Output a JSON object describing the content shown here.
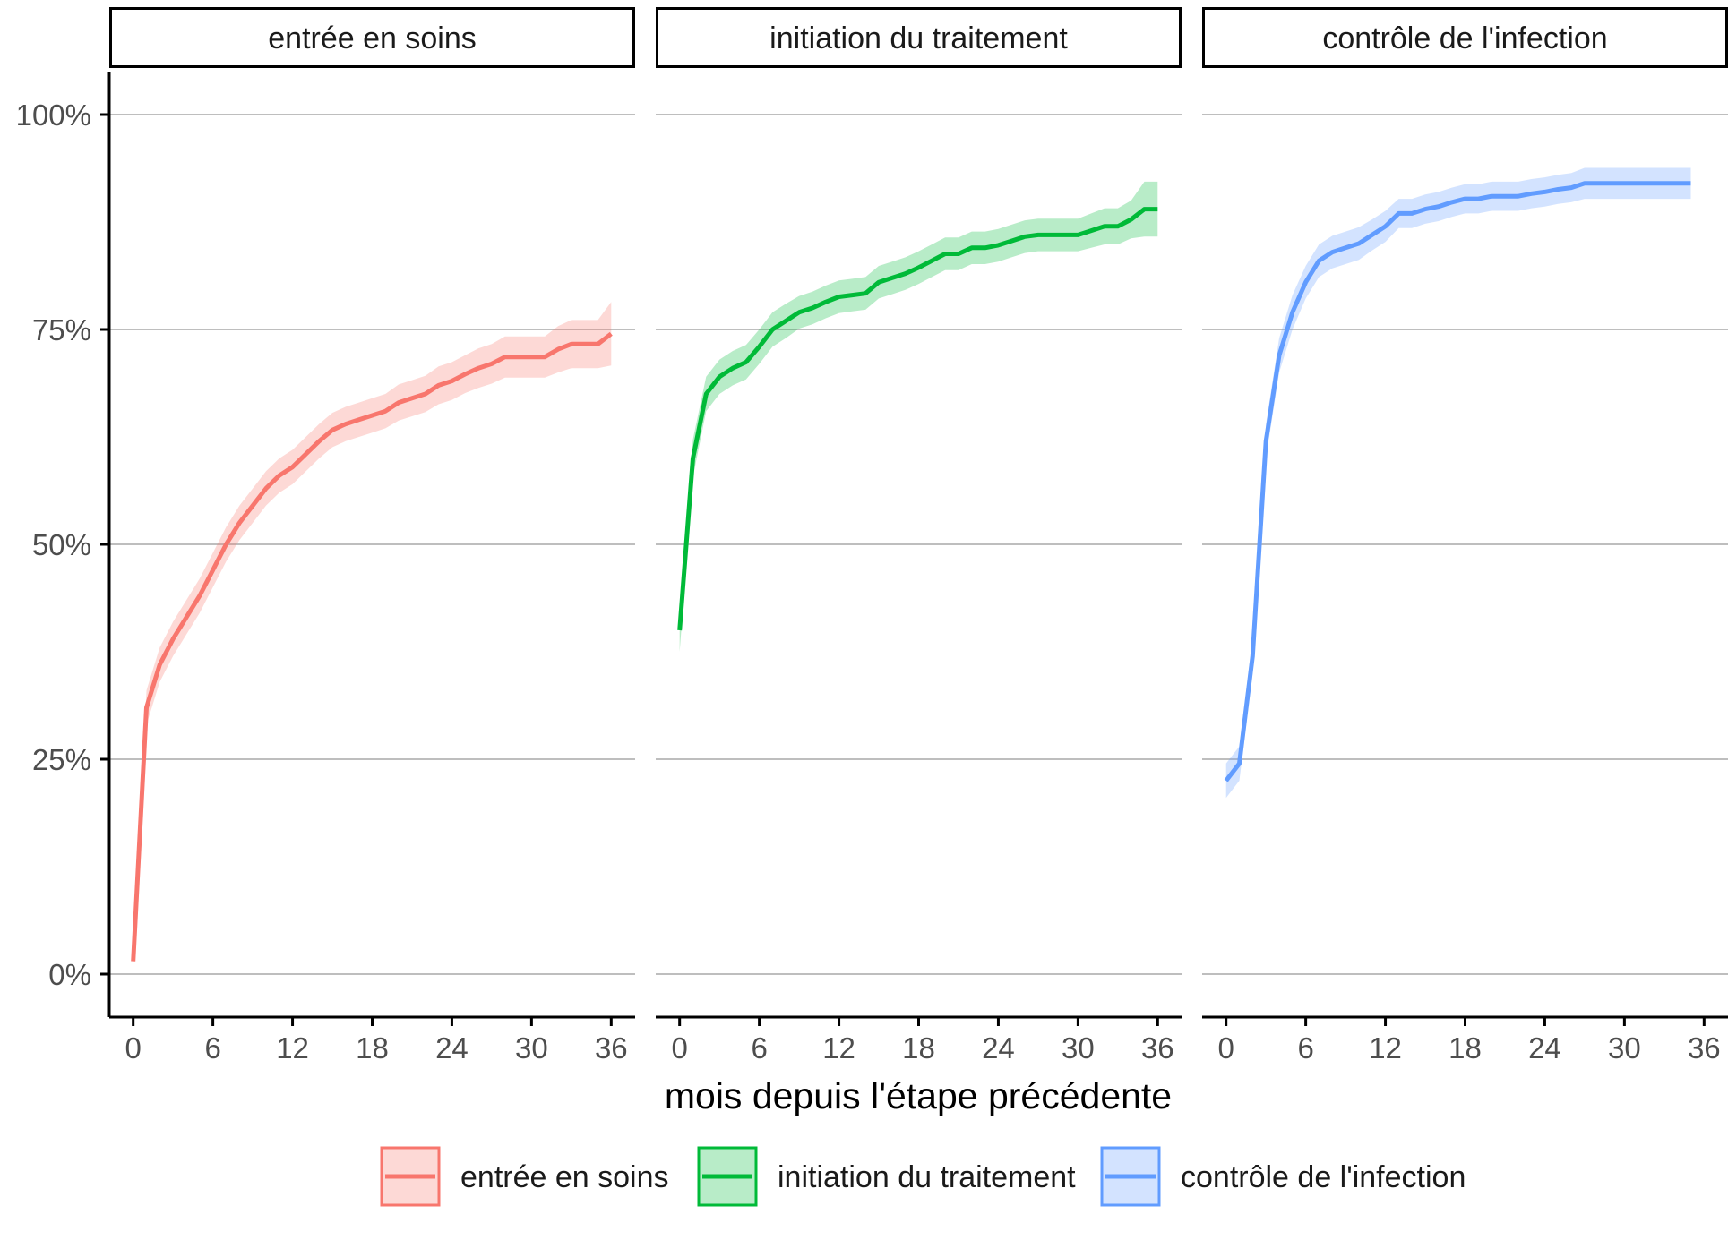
{
  "chart_data": {
    "type": "line",
    "facet_by": "series",
    "xlabel": "mois depuis l'étape précédente",
    "ylabel": "",
    "x_ticks": [
      0,
      6,
      12,
      18,
      24,
      30,
      36
    ],
    "y_ticks": [
      0,
      25,
      50,
      75,
      100
    ],
    "y_tick_labels": [
      "0%",
      "25%",
      "50%",
      "75%",
      "100%"
    ],
    "xlim": [
      -1.8,
      37.8
    ],
    "ylim": [
      -5,
      105
    ],
    "y_grid": true,
    "x_grid": false,
    "legend_position": "bottom",
    "series": [
      {
        "name": "entrée en soins",
        "color": "#F8766D",
        "points": [
          [
            0,
            1.5,
            1,
            2
          ],
          [
            1,
            31,
            29,
            33
          ],
          [
            2,
            36,
            34,
            38
          ],
          [
            3,
            39,
            37,
            41
          ],
          [
            4,
            41.5,
            39.5,
            43.5
          ],
          [
            5,
            44,
            42,
            46
          ],
          [
            6,
            47,
            45,
            49
          ],
          [
            7,
            50,
            48,
            52
          ],
          [
            8,
            52.5,
            50.5,
            54.5
          ],
          [
            9,
            54.5,
            52.5,
            56.5
          ],
          [
            10,
            56.5,
            54.5,
            58.5
          ],
          [
            11,
            58,
            56,
            60
          ],
          [
            12,
            59,
            57,
            61
          ],
          [
            13,
            60.5,
            58.5,
            62.5
          ],
          [
            14,
            62,
            60,
            64
          ],
          [
            15,
            63.3,
            61.3,
            65.3
          ],
          [
            16,
            64,
            62,
            66
          ],
          [
            17,
            64.5,
            62.5,
            66.5
          ],
          [
            18,
            65,
            63,
            67
          ],
          [
            19,
            65.5,
            63.5,
            67.5
          ],
          [
            20,
            66.5,
            64.4,
            68.6
          ],
          [
            21,
            67,
            64.9,
            69.1
          ],
          [
            22,
            67.5,
            65.4,
            69.6
          ],
          [
            23,
            68.5,
            66.3,
            70.7
          ],
          [
            24,
            69,
            66.8,
            71.2
          ],
          [
            25,
            69.8,
            67.6,
            72
          ],
          [
            26,
            70.5,
            68.2,
            72.8
          ],
          [
            27,
            71,
            68.7,
            73.3
          ],
          [
            28,
            71.8,
            69.4,
            74.2
          ],
          [
            29,
            71.8,
            69.4,
            74.2
          ],
          [
            30,
            71.8,
            69.4,
            74.2
          ],
          [
            31,
            71.8,
            69.4,
            74.2
          ],
          [
            32,
            72.7,
            70,
            75.4
          ],
          [
            33,
            73.3,
            70.5,
            76.1
          ],
          [
            34,
            73.3,
            70.5,
            76.1
          ],
          [
            35,
            73.3,
            70.5,
            76.1
          ],
          [
            36,
            74.5,
            70.8,
            78.2
          ]
        ]
      },
      {
        "name": "initiation du traitement",
        "color": "#00BA38",
        "points": [
          [
            0,
            40,
            37.5,
            42.5
          ],
          [
            1,
            60,
            57.8,
            62.2
          ],
          [
            2,
            67.5,
            65.5,
            69.5
          ],
          [
            3,
            69.5,
            67.5,
            71.5
          ],
          [
            4,
            70.5,
            68.5,
            72.5
          ],
          [
            5,
            71.2,
            69.2,
            73.2
          ],
          [
            6,
            73,
            71,
            75
          ],
          [
            7,
            75,
            73,
            77
          ],
          [
            8,
            76,
            74,
            78
          ],
          [
            9,
            77,
            75.1,
            78.9
          ],
          [
            10,
            77.5,
            75.6,
            79.4
          ],
          [
            11,
            78.2,
            76.3,
            80.1
          ],
          [
            12,
            78.8,
            76.9,
            80.7
          ],
          [
            13,
            79,
            77.1,
            80.9
          ],
          [
            14,
            79.2,
            77.3,
            81.1
          ],
          [
            15,
            80.5,
            78.6,
            82.4
          ],
          [
            16,
            81,
            79.1,
            82.9
          ],
          [
            17,
            81.5,
            79.6,
            83.4
          ],
          [
            18,
            82.2,
            80.3,
            84.1
          ],
          [
            19,
            83,
            81.1,
            84.9
          ],
          [
            20,
            83.8,
            81.9,
            85.7
          ],
          [
            21,
            83.8,
            81.9,
            85.7
          ],
          [
            22,
            84.5,
            82.6,
            86.4
          ],
          [
            23,
            84.5,
            82.6,
            86.4
          ],
          [
            24,
            84.8,
            82.9,
            86.7
          ],
          [
            25,
            85.3,
            83.4,
            87.2
          ],
          [
            26,
            85.8,
            83.9,
            87.7
          ],
          [
            27,
            86,
            84.1,
            87.9
          ],
          [
            28,
            86,
            84.1,
            87.9
          ],
          [
            29,
            86,
            84.1,
            87.9
          ],
          [
            30,
            86,
            84.1,
            87.9
          ],
          [
            31,
            86.5,
            84.5,
            88.5
          ],
          [
            32,
            87,
            84.9,
            89.1
          ],
          [
            33,
            87,
            84.9,
            89.1
          ],
          [
            34,
            87.8,
            85.6,
            90
          ],
          [
            35,
            89,
            85.8,
            92.2
          ],
          [
            36,
            89,
            85.8,
            92.2
          ]
        ]
      },
      {
        "name": "contrôle de l'infection",
        "color": "#619CFF",
        "points": [
          [
            0,
            22.5,
            20.5,
            24.5
          ],
          [
            1,
            24.5,
            22.5,
            26.5
          ],
          [
            2,
            37,
            35,
            39
          ],
          [
            3,
            62,
            60,
            64
          ],
          [
            4,
            72,
            70,
            74
          ],
          [
            5,
            77,
            75,
            79
          ],
          [
            6,
            80.5,
            78.6,
            82.4
          ],
          [
            7,
            83,
            81.1,
            84.9
          ],
          [
            8,
            84,
            82.1,
            85.9
          ],
          [
            9,
            84.5,
            82.6,
            86.4
          ],
          [
            10,
            85,
            83.1,
            86.9
          ],
          [
            11,
            86,
            84.2,
            87.8
          ],
          [
            12,
            87,
            85.2,
            88.8
          ],
          [
            13,
            88.5,
            86.8,
            90.2
          ],
          [
            14,
            88.5,
            86.8,
            90.2
          ],
          [
            15,
            89,
            87.3,
            90.7
          ],
          [
            16,
            89.3,
            87.6,
            91
          ],
          [
            17,
            89.8,
            88.1,
            91.5
          ],
          [
            18,
            90.2,
            88.5,
            91.9
          ],
          [
            19,
            90.2,
            88.5,
            91.9
          ],
          [
            20,
            90.5,
            88.8,
            92.2
          ],
          [
            21,
            90.5,
            88.8,
            92.2
          ],
          [
            22,
            90.5,
            88.8,
            92.2
          ],
          [
            23,
            90.8,
            89.1,
            92.5
          ],
          [
            24,
            91,
            89.3,
            92.7
          ],
          [
            25,
            91.3,
            89.6,
            93
          ],
          [
            26,
            91.5,
            89.8,
            93.2
          ],
          [
            27,
            92,
            90.2,
            93.8
          ],
          [
            28,
            92,
            90.2,
            93.8
          ],
          [
            29,
            92,
            90.2,
            93.8
          ],
          [
            30,
            92,
            90.2,
            93.8
          ],
          [
            31,
            92,
            90.2,
            93.8
          ],
          [
            32,
            92,
            90.2,
            93.8
          ],
          [
            33,
            92,
            90.2,
            93.8
          ],
          [
            34,
            92,
            90.2,
            93.8
          ],
          [
            35,
            92,
            90.2,
            93.8
          ]
        ]
      }
    ]
  }
}
